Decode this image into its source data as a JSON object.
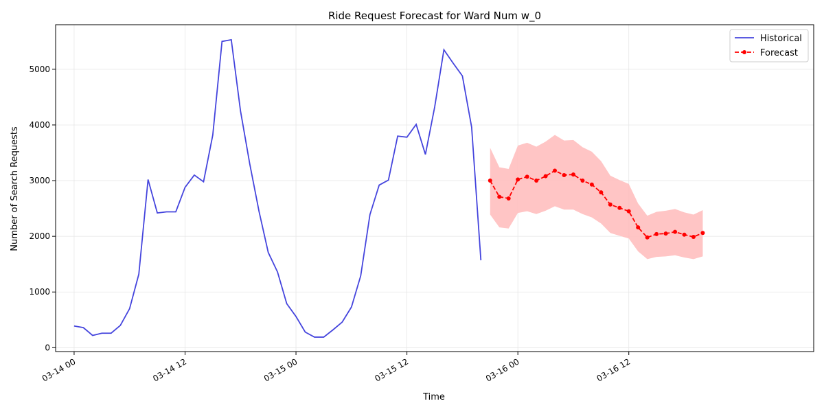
{
  "chart_data": {
    "type": "line",
    "title": "Ride Request Forecast for Ward Num w_0",
    "xlabel": "Time",
    "ylabel": "Number of Search Requests",
    "x_range": [
      "2024-03-13T22:00",
      "2024-03-17T08:00"
    ],
    "ylim": [
      -70,
      5800
    ],
    "x_ticks": [
      {
        "t": "2024-03-14T00:00",
        "label": "03-14 00"
      },
      {
        "t": "2024-03-14T12:00",
        "label": "03-14 12"
      },
      {
        "t": "2024-03-15T00:00",
        "label": "03-15 00"
      },
      {
        "t": "2024-03-15T12:00",
        "label": "03-15 12"
      },
      {
        "t": "2024-03-16T00:00",
        "label": "03-16 00"
      },
      {
        "t": "2024-03-16T12:00",
        "label": "03-16 12"
      }
    ],
    "y_ticks": [
      0,
      1000,
      2000,
      3000,
      4000,
      5000
    ],
    "grid": true,
    "legend": {
      "placement": "top-right",
      "entries": [
        "Historical",
        "Forecast"
      ]
    },
    "colors": {
      "historical": "#4444dd",
      "forecast": "#ff0000",
      "band": "#ffbbbb"
    },
    "series": [
      {
        "name": "Historical",
        "style": "solid line",
        "points": [
          [
            "2024-03-14T00:00",
            390
          ],
          [
            "2024-03-14T01:00",
            360
          ],
          [
            "2024-03-14T02:00",
            220
          ],
          [
            "2024-03-14T03:00",
            260
          ],
          [
            "2024-03-14T04:00",
            260
          ],
          [
            "2024-03-14T05:00",
            400
          ],
          [
            "2024-03-14T06:00",
            700
          ],
          [
            "2024-03-14T07:00",
            1320
          ],
          [
            "2024-03-14T08:00",
            3020
          ],
          [
            "2024-03-14T09:00",
            2420
          ],
          [
            "2024-03-14T10:00",
            2440
          ],
          [
            "2024-03-14T11:00",
            2440
          ],
          [
            "2024-03-14T12:00",
            2880
          ],
          [
            "2024-03-14T13:00",
            3100
          ],
          [
            "2024-03-14T14:00",
            2980
          ],
          [
            "2024-03-14T15:00",
            3820
          ],
          [
            "2024-03-14T16:00",
            5500
          ],
          [
            "2024-03-14T17:00",
            5530
          ],
          [
            "2024-03-14T18:00",
            4250
          ],
          [
            "2024-03-14T19:00",
            3300
          ],
          [
            "2024-03-14T20:00",
            2450
          ],
          [
            "2024-03-14T21:00",
            1710
          ],
          [
            "2024-03-14T22:00",
            1360
          ],
          [
            "2024-03-14T23:00",
            790
          ],
          [
            "2024-03-15T00:00",
            560
          ],
          [
            "2024-03-15T01:00",
            280
          ],
          [
            "2024-03-15T02:00",
            190
          ],
          [
            "2024-03-15T03:00",
            190
          ],
          [
            "2024-03-15T04:00",
            320
          ],
          [
            "2024-03-15T05:00",
            460
          ],
          [
            "2024-03-15T06:00",
            730
          ],
          [
            "2024-03-15T07:00",
            1290
          ],
          [
            "2024-03-15T08:00",
            2390
          ],
          [
            "2024-03-15T09:00",
            2920
          ],
          [
            "2024-03-15T10:00",
            3010
          ],
          [
            "2024-03-15T11:00",
            3800
          ],
          [
            "2024-03-15T12:00",
            3780
          ],
          [
            "2024-03-15T13:00",
            4010
          ],
          [
            "2024-03-15T14:00",
            3470
          ],
          [
            "2024-03-15T15:00",
            4320
          ],
          [
            "2024-03-15T16:00",
            5350
          ],
          [
            "2024-03-15T17:00",
            5110
          ],
          [
            "2024-03-15T18:00",
            4880
          ],
          [
            "2024-03-15T19:00",
            3960
          ],
          [
            "2024-03-15T20:00",
            1570
          ]
        ]
      },
      {
        "name": "Forecast",
        "style": "dashed line with markers and confidence band",
        "points": [
          [
            "2024-03-15T21:00",
            3000,
            2390,
            3590
          ],
          [
            "2024-03-15T22:00",
            2710,
            2160,
            3240
          ],
          [
            "2024-03-15T23:00",
            2680,
            2140,
            3210
          ],
          [
            "2024-03-16T00:00",
            3020,
            2420,
            3630
          ],
          [
            "2024-03-16T01:00",
            3070,
            2450,
            3680
          ],
          [
            "2024-03-16T02:00",
            3000,
            2400,
            3610
          ],
          [
            "2024-03-16T03:00",
            3080,
            2460,
            3700
          ],
          [
            "2024-03-16T04:00",
            3180,
            2540,
            3820
          ],
          [
            "2024-03-16T05:00",
            3100,
            2480,
            3720
          ],
          [
            "2024-03-16T06:00",
            3110,
            2480,
            3730
          ],
          [
            "2024-03-16T07:00",
            3000,
            2400,
            3600
          ],
          [
            "2024-03-16T08:00",
            2930,
            2340,
            3520
          ],
          [
            "2024-03-16T09:00",
            2790,
            2230,
            3350
          ],
          [
            "2024-03-16T10:00",
            2570,
            2060,
            3090
          ],
          [
            "2024-03-16T11:00",
            2510,
            2010,
            3010
          ],
          [
            "2024-03-16T12:00",
            2450,
            1960,
            2940
          ],
          [
            "2024-03-16T13:00",
            2160,
            1730,
            2590
          ],
          [
            "2024-03-16T14:00",
            1980,
            1590,
            2370
          ],
          [
            "2024-03-16T15:00",
            2040,
            1630,
            2440
          ],
          [
            "2024-03-16T16:00",
            2050,
            1640,
            2460
          ],
          [
            "2024-03-16T17:00",
            2080,
            1660,
            2490
          ],
          [
            "2024-03-16T18:00",
            2030,
            1620,
            2430
          ],
          [
            "2024-03-16T19:00",
            1990,
            1590,
            2390
          ],
          [
            "2024-03-16T20:00",
            2060,
            1640,
            2470
          ]
        ]
      }
    ]
  }
}
